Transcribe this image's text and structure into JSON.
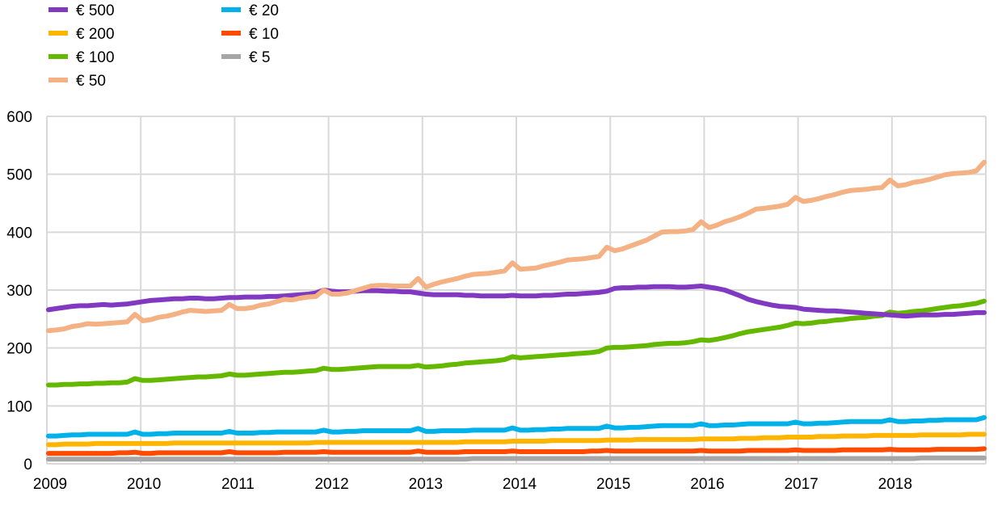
{
  "chart_data": {
    "type": "line",
    "title": "",
    "xlabel": "",
    "ylabel": "",
    "ylim": [
      0,
      600
    ],
    "yticks": [
      "0",
      "100",
      "200",
      "300",
      "400",
      "500",
      "600"
    ],
    "xticks": [
      "2009",
      "2010",
      "2011",
      "2012",
      "2013",
      "2014",
      "2015",
      "2016",
      "2017",
      "2018"
    ],
    "x_range": [
      "2009-01",
      "2018-12"
    ],
    "frequency": "monthly",
    "grid": true,
    "legend_position": "top-left",
    "series": [
      {
        "name": "€ 500",
        "color": "#8139C2",
        "values": [
          266,
          268,
          270,
          272,
          273,
          273,
          274,
          275,
          274,
          275,
          276,
          278,
          280,
          282,
          283,
          284,
          285,
          285,
          286,
          286,
          285,
          285,
          286,
          287,
          287,
          288,
          288,
          288,
          289,
          289,
          290,
          291,
          292,
          293,
          295,
          300,
          298,
          297,
          297,
          298,
          299,
          299,
          299,
          298,
          298,
          297,
          297,
          295,
          293,
          292,
          292,
          292,
          292,
          291,
          291,
          290,
          290,
          290,
          290,
          291,
          290,
          290,
          290,
          291,
          291,
          292,
          293,
          293,
          294,
          295,
          296,
          298,
          303,
          304,
          304,
          305,
          305,
          306,
          306,
          306,
          305,
          305,
          306,
          307,
          305,
          303,
          300,
          295,
          290,
          284,
          280,
          277,
          274,
          272,
          271,
          270,
          267,
          266,
          265,
          264,
          264,
          263,
          262,
          261,
          260,
          259,
          258,
          257,
          256,
          255,
          256,
          257,
          257,
          257,
          258,
          258,
          259,
          260,
          261,
          261
        ]
      },
      {
        "name": "€ 200",
        "color": "#FFB400",
        "values": [
          33,
          33,
          34,
          34,
          34,
          34,
          35,
          35,
          35,
          35,
          35,
          35,
          35,
          35,
          35,
          35,
          36,
          36,
          36,
          36,
          36,
          36,
          36,
          36,
          36,
          36,
          36,
          36,
          36,
          36,
          36,
          36,
          36,
          36,
          37,
          37,
          37,
          37,
          37,
          37,
          37,
          37,
          37,
          37,
          37,
          37,
          37,
          37,
          37,
          37,
          37,
          37,
          37,
          38,
          38,
          38,
          38,
          38,
          38,
          39,
          39,
          39,
          39,
          39,
          40,
          40,
          40,
          40,
          40,
          40,
          40,
          41,
          41,
          41,
          41,
          42,
          42,
          42,
          42,
          42,
          42,
          42,
          42,
          43,
          43,
          43,
          43,
          43,
          44,
          44,
          44,
          45,
          45,
          45,
          46,
          46,
          46,
          46,
          47,
          47,
          47,
          48,
          48,
          48,
          48,
          49,
          49,
          49,
          49,
          49,
          49,
          50,
          50,
          50,
          50,
          50,
          50,
          51,
          51,
          51
        ]
      },
      {
        "name": "€ 100",
        "color": "#65B800",
        "values": [
          136,
          136,
          137,
          137,
          138,
          138,
          139,
          139,
          140,
          140,
          141,
          147,
          144,
          144,
          145,
          146,
          147,
          148,
          149,
          150,
          150,
          151,
          152,
          155,
          153,
          153,
          154,
          155,
          156,
          157,
          158,
          158,
          159,
          160,
          161,
          165,
          163,
          163,
          164,
          165,
          166,
          167,
          168,
          168,
          168,
          168,
          168,
          170,
          167,
          168,
          169,
          171,
          172,
          174,
          175,
          176,
          177,
          178,
          180,
          185,
          183,
          184,
          185,
          186,
          187,
          188,
          189,
          190,
          191,
          192,
          194,
          200,
          201,
          201,
          202,
          203,
          204,
          206,
          207,
          208,
          208,
          209,
          211,
          214,
          213,
          215,
          218,
          221,
          225,
          228,
          230,
          232,
          234,
          236,
          239,
          243,
          242,
          243,
          245,
          246,
          248,
          249,
          251,
          252,
          253,
          255,
          256,
          262,
          260,
          261,
          263,
          264,
          266,
          268,
          270,
          272,
          273,
          275,
          277,
          281
        ]
      },
      {
        "name": "€ 50",
        "color": "#F4B183",
        "values": [
          230,
          231,
          233,
          237,
          239,
          242,
          241,
          242,
          243,
          244,
          245,
          258,
          247,
          249,
          253,
          255,
          258,
          262,
          265,
          264,
          263,
          264,
          265,
          275,
          268,
          268,
          270,
          274,
          276,
          280,
          284,
          283,
          286,
          288,
          289,
          300,
          293,
          293,
          295,
          299,
          303,
          307,
          308,
          308,
          307,
          307,
          307,
          320,
          305,
          310,
          314,
          317,
          320,
          324,
          327,
          328,
          329,
          331,
          333,
          347,
          336,
          337,
          338,
          342,
          345,
          348,
          352,
          353,
          354,
          356,
          358,
          374,
          368,
          371,
          376,
          381,
          386,
          393,
          400,
          401,
          401,
          402,
          405,
          418,
          408,
          412,
          418,
          422,
          427,
          433,
          440,
          441,
          443,
          445,
          448,
          460,
          453,
          455,
          458,
          462,
          465,
          469,
          472,
          473,
          474,
          476,
          477,
          490,
          480,
          482,
          486,
          488,
          491,
          495,
          499,
          501,
          502,
          503,
          506,
          521
        ]
      },
      {
        "name": "€ 20",
        "color": "#00B1EA",
        "values": [
          48,
          48,
          49,
          50,
          50,
          51,
          51,
          51,
          51,
          51,
          51,
          55,
          51,
          51,
          52,
          52,
          53,
          53,
          53,
          53,
          53,
          53,
          53,
          56,
          53,
          53,
          53,
          54,
          54,
          55,
          55,
          55,
          55,
          55,
          55,
          58,
          55,
          55,
          56,
          56,
          57,
          57,
          57,
          57,
          57,
          57,
          57,
          61,
          56,
          56,
          57,
          57,
          57,
          57,
          58,
          58,
          58,
          58,
          58,
          62,
          58,
          58,
          59,
          59,
          60,
          60,
          61,
          61,
          61,
          61,
          61,
          65,
          62,
          62,
          63,
          63,
          64,
          65,
          66,
          66,
          66,
          66,
          66,
          69,
          66,
          66,
          67,
          67,
          68,
          69,
          69,
          69,
          69,
          69,
          69,
          72,
          69,
          69,
          70,
          70,
          71,
          72,
          73,
          73,
          73,
          73,
          73,
          76,
          73,
          73,
          74,
          74,
          75,
          75,
          76,
          76,
          76,
          76,
          76,
          80
        ]
      },
      {
        "name": "€ 10",
        "color": "#FF4B00",
        "values": [
          18,
          18,
          18,
          18,
          18,
          18,
          18,
          18,
          18,
          19,
          19,
          20,
          18,
          18,
          19,
          19,
          19,
          19,
          19,
          19,
          19,
          19,
          19,
          21,
          19,
          19,
          19,
          19,
          19,
          19,
          20,
          20,
          20,
          20,
          20,
          21,
          20,
          20,
          20,
          20,
          20,
          20,
          20,
          20,
          20,
          20,
          20,
          22,
          20,
          20,
          20,
          20,
          20,
          21,
          21,
          21,
          21,
          21,
          21,
          22,
          21,
          21,
          21,
          21,
          21,
          21,
          21,
          21,
          21,
          22,
          22,
          23,
          22,
          22,
          22,
          22,
          22,
          22,
          22,
          22,
          22,
          22,
          22,
          23,
          22,
          22,
          22,
          22,
          22,
          23,
          23,
          23,
          23,
          23,
          23,
          24,
          23,
          23,
          23,
          23,
          23,
          24,
          24,
          24,
          24,
          24,
          24,
          25,
          24,
          24,
          24,
          24,
          24,
          25,
          25,
          25,
          25,
          25,
          25,
          26
        ]
      },
      {
        "name": "€ 5",
        "color": "#A6A6A6",
        "values": [
          8,
          8,
          8,
          8,
          8,
          8,
          8,
          8,
          8,
          8,
          8,
          8,
          8,
          8,
          8,
          8,
          8,
          8,
          8,
          8,
          8,
          8,
          8,
          8,
          8,
          8,
          8,
          8,
          8,
          8,
          8,
          8,
          8,
          8,
          8,
          8,
          8,
          8,
          8,
          8,
          8,
          8,
          8,
          8,
          8,
          8,
          8,
          8,
          8,
          8,
          8,
          8,
          8,
          8,
          9,
          9,
          9,
          9,
          9,
          9,
          9,
          9,
          9,
          9,
          9,
          9,
          9,
          9,
          9,
          9,
          9,
          9,
          9,
          9,
          9,
          9,
          9,
          9,
          9,
          9,
          9,
          9,
          9,
          9,
          9,
          9,
          9,
          9,
          9,
          9,
          9,
          9,
          9,
          9,
          9,
          9,
          9,
          9,
          9,
          9,
          9,
          9,
          9,
          9,
          9,
          9,
          9,
          9,
          9,
          9,
          9,
          10,
          10,
          10,
          10,
          10,
          10,
          10,
          10,
          10
        ]
      }
    ]
  }
}
